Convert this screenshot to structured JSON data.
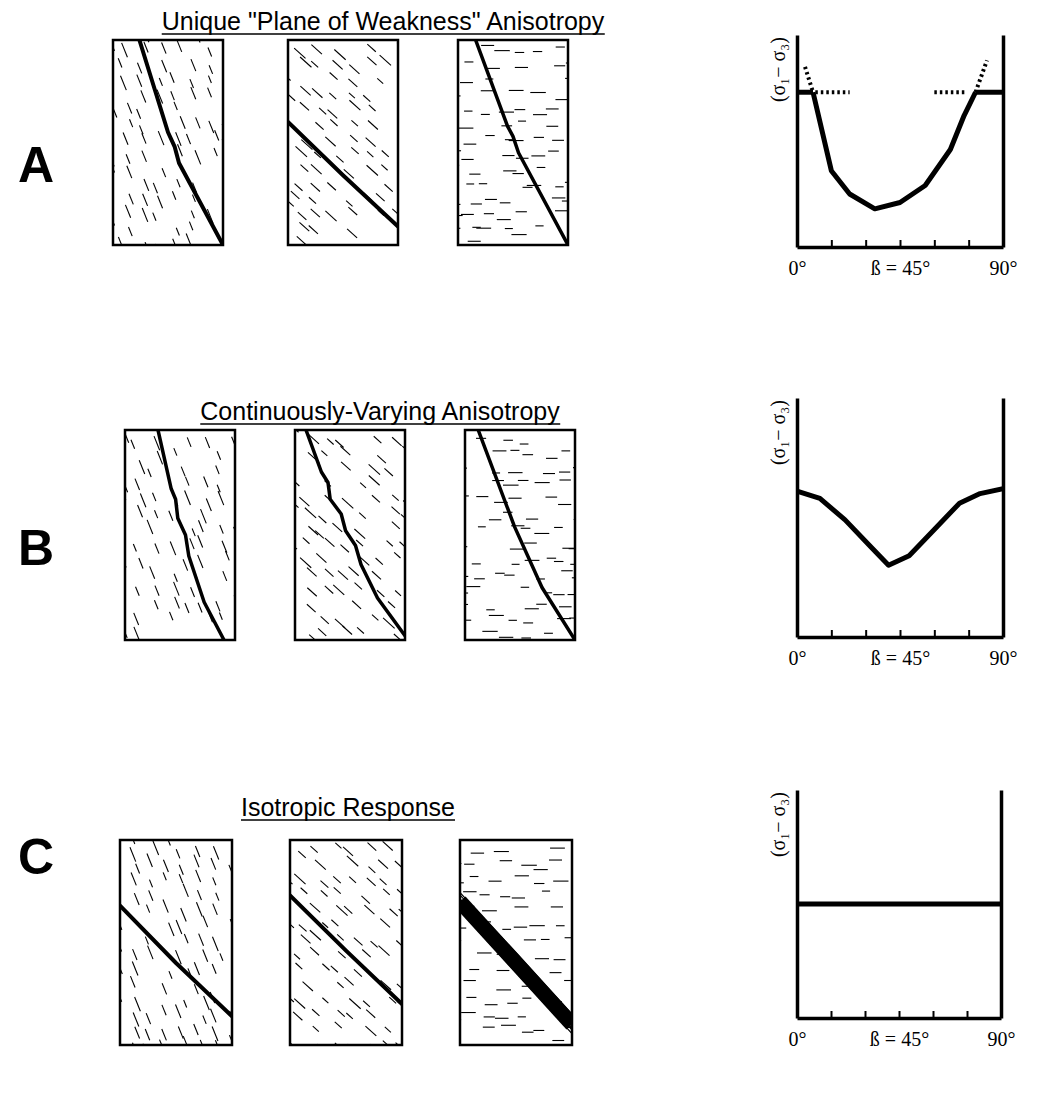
{
  "chart_data": [
    {
      "type": "line",
      "panel_label": "A",
      "title": "Unique \"Plane of Weakness\" Anisotropy",
      "ylabel": "(σ₁− σ₃)",
      "xlim": [
        0,
        90
      ],
      "ylim": [
        0,
        100
      ],
      "xticks": [
        {
          "value": 0,
          "label": "0°"
        },
        {
          "value": 15,
          "label": null
        },
        {
          "value": 30,
          "label": null
        },
        {
          "value": 45,
          "label": "ß = 45°"
        },
        {
          "value": 60,
          "label": null
        },
        {
          "value": 75,
          "label": null
        },
        {
          "value": 90,
          "label": "90°"
        }
      ],
      "yticks": [],
      "tick_labels": "x",
      "color": "#000000",
      "series": [
        {
          "x": [
            0,
            7
          ],
          "values": [
            73,
            73
          ],
          "line_style": "solid"
        },
        {
          "x": [
            7,
            15,
            23,
            34,
            45,
            56,
            67,
            73,
            78
          ],
          "values": [
            73,
            36,
            25,
            18,
            21,
            29,
            46,
            62,
            73
          ],
          "line_style": "solid"
        },
        {
          "x": [
            78,
            90
          ],
          "values": [
            73,
            73
          ],
          "line_style": "solid"
        },
        {
          "x": [
            3.5,
            7
          ],
          "values": [
            85,
            73
          ],
          "line_style": "dotted"
        },
        {
          "x": [
            8,
            23
          ],
          "values": [
            73,
            73
          ],
          "line_style": "dotted"
        },
        {
          "x": [
            60,
            74
          ],
          "values": [
            73,
            73
          ],
          "line_style": "dotted"
        },
        {
          "x": [
            78,
            83
          ],
          "values": [
            73,
            88
          ],
          "line_style": "dotted"
        }
      ]
    },
    {
      "type": "line",
      "panel_label": "B",
      "title": "Continuously-Varying Anisotropy",
      "ylabel": "(σ₁− σ₃)",
      "xlim": [
        0,
        90
      ],
      "ylim": [
        0,
        100
      ],
      "xticks": [
        {
          "value": 0,
          "label": "0°"
        },
        {
          "value": 15,
          "label": null
        },
        {
          "value": 30,
          "label": null
        },
        {
          "value": 45,
          "label": "ß = 45°"
        },
        {
          "value": 60,
          "label": null
        },
        {
          "value": 75,
          "label": null
        },
        {
          "value": 90,
          "label": "90°"
        }
      ],
      "yticks": [],
      "tick_labels": "x",
      "color": "#000000",
      "series": [
        {
          "x": [
            0,
            10,
            21,
            32,
            40,
            49,
            60,
            71,
            80,
            90
          ],
          "values": [
            61,
            58,
            49,
            38,
            30,
            34,
            45,
            56,
            60,
            62
          ],
          "line_style": "solid"
        }
      ]
    },
    {
      "type": "line",
      "panel_label": "C",
      "title": "Isotropic Response",
      "ylabel": "(σ₁− σ₃)",
      "xlim": [
        0,
        90
      ],
      "ylim": [
        0,
        100
      ],
      "xticks": [
        {
          "value": 0,
          "label": "0°"
        },
        {
          "value": 15,
          "label": null
        },
        {
          "value": 30,
          "label": null
        },
        {
          "value": 45,
          "label": "ß = 45°"
        },
        {
          "value": 60,
          "label": null
        },
        {
          "value": 75,
          "label": null
        },
        {
          "value": 90,
          "label": "90°"
        }
      ],
      "yticks": [],
      "tick_labels": "x",
      "color": "#000000",
      "series": [
        {
          "x": [
            0,
            90
          ],
          "values": [
            50,
            50
          ],
          "line_style": "solid"
        }
      ]
    }
  ]
}
